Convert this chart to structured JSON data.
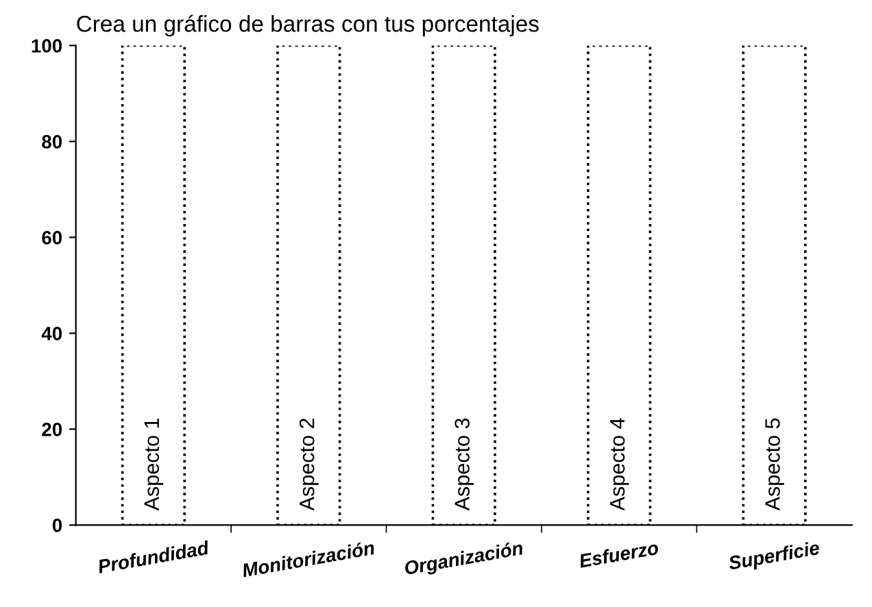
{
  "chart_data": {
    "type": "bar",
    "title": "Crea un gráfico de barras con tus porcentajes",
    "categories": [
      "Profundidad",
      "Monitorización",
      "Organización",
      "Esfuerzo",
      "Superficie"
    ],
    "values": [
      100,
      100,
      100,
      100,
      100
    ],
    "value_labels": [
      "Aspecto 1",
      "Aspecto 2",
      "Aspecto 3",
      "Aspecto 4",
      "Aspecto 5"
    ],
    "color": "#ffffff",
    "line_style": "dotted",
    "ylim": [
      0,
      100
    ],
    "yticks": [
      0,
      20,
      40,
      60,
      80,
      100
    ],
    "grid": false,
    "legend": false
  }
}
